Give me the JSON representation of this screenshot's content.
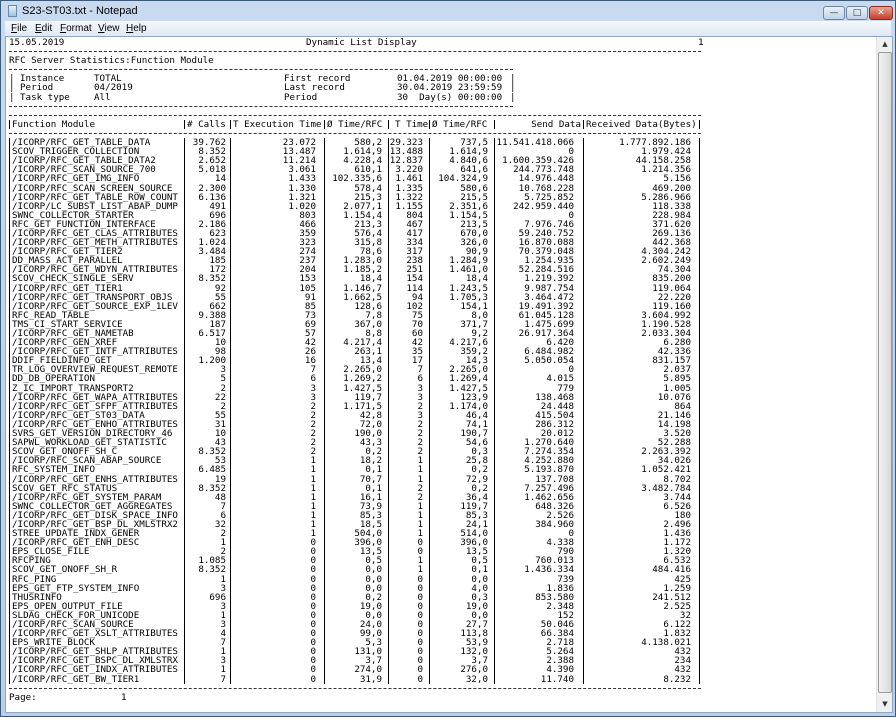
{
  "window": {
    "title": "S23-ST03.txt - Notepad",
    "icon": "notepad-icon",
    "controls": {
      "minimize": "—",
      "maximize": "□",
      "close": "✕"
    }
  },
  "menu": [
    "File",
    "Edit",
    "Format",
    "View",
    "Help"
  ],
  "report": {
    "date": "15.05.2019",
    "title": "Dynamic List Display",
    "page_number": "1",
    "subtitle": "RFC Server Statistics:Function Module",
    "info": {
      "instance_label": "Instance",
      "instance_value": "TOTAL",
      "period_label": "Period",
      "period_value": "04/2019",
      "task_type_label": "Task type",
      "task_type_value": "All",
      "first_record_label": "First record",
      "first_record_value": "01.04.2019 00:00:00",
      "last_record_label": "Last record",
      "last_record_value": "30.04.2019 23:59:59",
      "period2_label": "Period",
      "period2_value": "30  Day(s) 00:00:00"
    },
    "columns": [
      "Function Module",
      "# Calls",
      "T Execution Time",
      "Ø Time/RFC",
      "T Time",
      "Ø Time/RFC",
      "Send Data",
      "Received Data(Bytes)"
    ],
    "rows": [
      [
        "/ICORP/RFC_GET_TABLE_DATA",
        "39.762",
        "23.072",
        "580,2",
        "29.323",
        "737,5",
        "11.541.418.066",
        "1.777.892.186"
      ],
      [
        "SCOV_TRIGGER_COLLECTION",
        "8.352",
        "13.487",
        "1.614,9",
        "13.488",
        "1.614,9",
        "0",
        "1.979.424"
      ],
      [
        "/ICORP/RFC_GET_TABLE_DATA2",
        "2.652",
        "11.214",
        "4.228,4",
        "12.837",
        "4.840,6",
        "1.600.359.426",
        "44.158.258"
      ],
      [
        "/ICORP/RFC_SCAN_SOURCE_700",
        "5.018",
        "3.061",
        "610,1",
        "3.220",
        "641,6",
        "244.773.748",
        "1.214.356"
      ],
      [
        "/ICORP/RFC_GET_IMG_INFO",
        "14",
        "1.433",
        "102.335,6",
        "1.461",
        "104.324,9",
        "14.976.448",
        "5.156"
      ],
      [
        "/ICORP/RFC_SCAN_SCREEN_SOURCE",
        "2.300",
        "1.330",
        "578,4",
        "1.335",
        "580,6",
        "10.768.228",
        "469.200"
      ],
      [
        "/ICORP/RFC_GET_TABLE_ROW_COUNT",
        "6.136",
        "1.321",
        "215,3",
        "1.322",
        "215,5",
        "5.725.852",
        "5.286.966"
      ],
      [
        "/ICORP/LC_SUBST_LIST_ABAP_DUMP",
        "491",
        "1.020",
        "2.077,1",
        "1.155",
        "2.351,6",
        "242.959.440",
        "118.338"
      ],
      [
        "SWNC_COLLECTOR_STARTER",
        "696",
        "803",
        "1.154,4",
        "804",
        "1.154,5",
        "0",
        "228.984"
      ],
      [
        "RFC_GET_FUNCTION_INTERFACE",
        "2.186",
        "466",
        "213,3",
        "467",
        "213,5",
        "7.976.746",
        "371.620"
      ],
      [
        "/ICORP/RFC_GET_CLAS_ATTRIBUTES",
        "623",
        "359",
        "576,4",
        "417",
        "670,0",
        "59.240.752",
        "269.136"
      ],
      [
        "/ICORP/RFC_GET_METH_ATTRIBUTES",
        "1.024",
        "323",
        "315,8",
        "334",
        "326,0",
        "16.870.088",
        "442.368"
      ],
      [
        "/ICORP/RFC_GET_TIER2",
        "3.484",
        "274",
        "78,6",
        "317",
        "90,9",
        "70.379.048",
        "4.304.242"
      ],
      [
        "DD_MASS_ACT_PARALLEL",
        "185",
        "237",
        "1.283,0",
        "238",
        "1.284,9",
        "1.254.935",
        "2.602.249"
      ],
      [
        "/ICORP/RFC_GET_WDYN_ATTRIBUTES",
        "172",
        "204",
        "1.185,2",
        "251",
        "1.461,0",
        "52.284.516",
        "74.304"
      ],
      [
        "SCOV_CHECK_SINGLE_SERV",
        "8.352",
        "153",
        "18,4",
        "154",
        "18,4",
        "1.219.392",
        "835.200"
      ],
      [
        "/ICORP/RFC_GET_TIER1",
        "92",
        "105",
        "1.146,7",
        "114",
        "1.243,5",
        "9.987.754",
        "119.064"
      ],
      [
        "/ICORP/RFC_GET_TRANSPORT_OBJS",
        "55",
        "91",
        "1.662,5",
        "94",
        "1.705,3",
        "3.464.472",
        "22.220"
      ],
      [
        "/ICORP/RFC_GET_SOURCE_EXP_1LEV",
        "662",
        "85",
        "128,6",
        "102",
        "154,1",
        "19.491.392",
        "119.160"
      ],
      [
        "RFC_READ_TABLE",
        "9.388",
        "73",
        "7,8",
        "75",
        "8,0",
        "61.045.128",
        "3.604.992"
      ],
      [
        "TMS_CI_START_SERVICE",
        "187",
        "69",
        "367,0",
        "70",
        "371,7",
        "1.475.699",
        "1.190.528"
      ],
      [
        "/ICORP/RFC_GET_NAMETAB",
        "6.517",
        "57",
        "8,8",
        "60",
        "9,2",
        "26.917.364",
        "2.033.304"
      ],
      [
        "/ICORP/RFC_GEN_XREF",
        "10",
        "42",
        "4.217,4",
        "42",
        "4.217,6",
        "6.420",
        "6.280"
      ],
      [
        "/ICORP/RFC_GET_INTF_ATTRIBUTES",
        "98",
        "26",
        "263,1",
        "35",
        "359,2",
        "6.484.982",
        "42.336"
      ],
      [
        "DDIF_FIELDINFO_GET",
        "1.200",
        "16",
        "13,4",
        "17",
        "14,3",
        "5.050.054",
        "831.157"
      ],
      [
        "TR_LOG_OVERVIEW_REQUEST_REMOTE",
        "3",
        "7",
        "2.265,0",
        "7",
        "2.265,0",
        "0",
        "2.037"
      ],
      [
        "DD_DB_OPERATION",
        "5",
        "6",
        "1.269,2",
        "6",
        "1.269,4",
        "4.015",
        "5.895"
      ],
      [
        "Z_IC_IMPORT_TRANSPORT2",
        "2",
        "3",
        "1.427,5",
        "3",
        "1.427,5",
        "779",
        "1.005"
      ],
      [
        "/ICORP/RFC_GET_WAPA_ATTRIBUTES",
        "22",
        "3",
        "119,7",
        "3",
        "123,9",
        "138.468",
        "10.076"
      ],
      [
        "/ICORP/RFC_GET_SFPF_ATTRIBUTES",
        "2",
        "2",
        "1.171,5",
        "2",
        "1.174,0",
        "24.448",
        "864"
      ],
      [
        "/ICORP/RFC_GET_ST03_DATA",
        "55",
        "2",
        "42,8",
        "3",
        "46,4",
        "415.504",
        "21.146"
      ],
      [
        "/ICORP/RFC_GET_ENHO_ATTRIBUTES",
        "31",
        "2",
        "72,0",
        "2",
        "74,1",
        "286.312",
        "14.198"
      ],
      [
        "SVRS_GET_VERSION_DIRECTORY_46",
        "10",
        "2",
        "190,0",
        "2",
        "190,7",
        "20.012",
        "3.520"
      ],
      [
        "SAPWL_WORKLOAD_GET_STATISTIC",
        "43",
        "2",
        "43,3",
        "2",
        "54,6",
        "1.270.640",
        "52.288"
      ],
      [
        "SCOV_GET_ONOFF_SH_C",
        "8.352",
        "2",
        "0,2",
        "2",
        "0,3",
        "7.274.354",
        "2.263.392"
      ],
      [
        "/ICORP/RFC_SCAN_ABAP_SOURCE",
        "53",
        "1",
        "18,2",
        "1",
        "25,8",
        "4.252.880",
        "34.026"
      ],
      [
        "RFC_SYSTEM_INFO",
        "6.485",
        "1",
        "0,1",
        "1",
        "0,2",
        "5.193.870",
        "1.052.421"
      ],
      [
        "/ICORP/RFC_GET_ENHS_ATTRIBUTES",
        "19",
        "1",
        "70,7",
        "1",
        "72,9",
        "137.708",
        "8.702"
      ],
      [
        "SCOV_GET_RFC_STATUS",
        "8.352",
        "1",
        "0,1",
        "2",
        "0,2",
        "7.257.496",
        "3.482.784"
      ],
      [
        "/ICORP/RFC_GET_SYSTEM_PARAM",
        "48",
        "1",
        "16,1",
        "2",
        "36,4",
        "1.462.656",
        "3.744"
      ],
      [
        "SWNC_COLLECTOR_GET_AGGREGATES",
        "7",
        "1",
        "73,9",
        "1",
        "119,7",
        "648.326",
        "6.526"
      ],
      [
        "/ICORP/RFC_GET_DISK_SPACE_INFO",
        "6",
        "1",
        "85,3",
        "1",
        "85,3",
        "2.526",
        "180"
      ],
      [
        "/ICORP/RFC_GET_BSP_DL_XMLSTRX2",
        "32",
        "1",
        "18,5",
        "1",
        "24,1",
        "384.960",
        "2.496"
      ],
      [
        "STREE_UPDATE_INDX_GENER",
        "2",
        "1",
        "504,0",
        "1",
        "514,0",
        "0",
        "1.436"
      ],
      [
        "/ICORP/RFC_GET_ENH_DESC",
        "1",
        "0",
        "396,0",
        "0",
        "396,0",
        "4.338",
        "1.172"
      ],
      [
        "EPS_CLOSE_FILE",
        "2",
        "0",
        "13,5",
        "0",
        "13,5",
        "790",
        "1.320"
      ],
      [
        "RFCPING",
        "1.085",
        "0",
        "0,5",
        "1",
        "0,5",
        "760.013",
        "6.532"
      ],
      [
        "SCOV_GET_ONOFF_SH_R",
        "8.352",
        "0",
        "0,0",
        "1",
        "0,1",
        "1.436.334",
        "484.416"
      ],
      [
        "RFC_PING",
        "1",
        "0",
        "0,0",
        "0",
        "0,0",
        "739",
        "425"
      ],
      [
        "EPS_GET_FTP_SYSTEM_INFO",
        "3",
        "0",
        "0,0",
        "0",
        "4,0",
        "1.836",
        "1.259"
      ],
      [
        "THUSRINFO",
        "696",
        "0",
        "0,2",
        "0",
        "0,3",
        "853.580",
        "241.512"
      ],
      [
        "EPS_OPEN_OUTPUT_FILE",
        "3",
        "0",
        "19,0",
        "0",
        "19,0",
        "2.348",
        "2.525"
      ],
      [
        "SLDAG_CHECK_FOR_UNICODE",
        "1",
        "0",
        "0,0",
        "0",
        "0,0",
        "152",
        "32"
      ],
      [
        "/ICORP/RFC_SCAN_SOURCE",
        "3",
        "0",
        "24,0",
        "0",
        "27,7",
        "50.046",
        "6.122"
      ],
      [
        "/ICORP/RFC_GET_XSLT_ATTRIBUTES",
        "4",
        "0",
        "99,0",
        "0",
        "113,8",
        "66.384",
        "1.832"
      ],
      [
        "EPS_WRITE_BLOCK",
        "7",
        "0",
        "5,3",
        "0",
        "53,9",
        "2.718",
        "4.138.021"
      ],
      [
        "/ICORP/RFC_GET_SHLP_ATTRIBUTES",
        "1",
        "0",
        "131,0",
        "0",
        "132,0",
        "5.264",
        "432"
      ],
      [
        "/ICORP/RFC_GET_BSPC_DL_XMLSTRX",
        "3",
        "0",
        "3,7",
        "0",
        "3,7",
        "2.388",
        "234"
      ],
      [
        "/ICORP/RFC_GET_INDX_ATTRIBUTES",
        "1",
        "0",
        "274,0",
        "0",
        "276,0",
        "4.390",
        "432"
      ],
      [
        "/ICORP/RFC_GET_BW_TIER1",
        "7",
        "0",
        "31,9",
        "0",
        "32,0",
        "11.740",
        "8.232"
      ]
    ],
    "footer_label": "Page:",
    "footer_page": "1"
  },
  "scrollbar": {
    "up": "▲",
    "down": "▼"
  }
}
